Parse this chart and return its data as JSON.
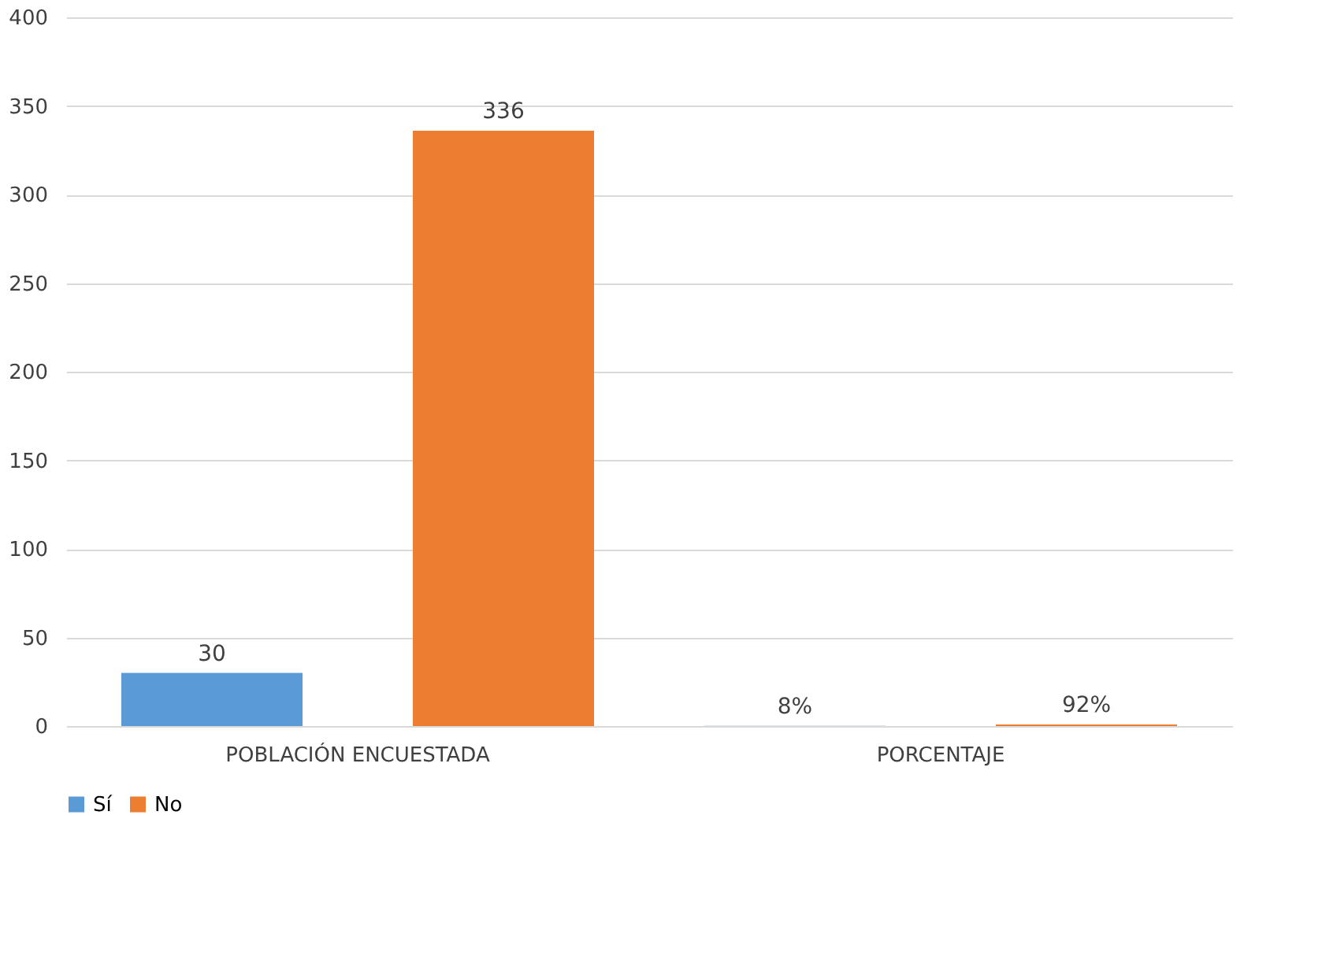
{
  "chart_data": {
    "type": "bar",
    "categories": [
      "POBLACIÓN ENCUESTADA",
      "PORCENTAJE"
    ],
    "series": [
      {
        "name": "Sí",
        "color": "#5b9bd5",
        "values": [
          30,
          0.08
        ],
        "value_labels": [
          "30",
          "8%"
        ]
      },
      {
        "name": "No",
        "color": "#ed7d31",
        "values": [
          336,
          0.92
        ],
        "value_labels": [
          "336",
          "92%"
        ]
      }
    ],
    "ylim": [
      0,
      400
    ],
    "yticks": [
      0,
      50,
      100,
      150,
      200,
      250,
      300,
      350,
      400
    ],
    "grid": "y",
    "legend": "bottom"
  }
}
